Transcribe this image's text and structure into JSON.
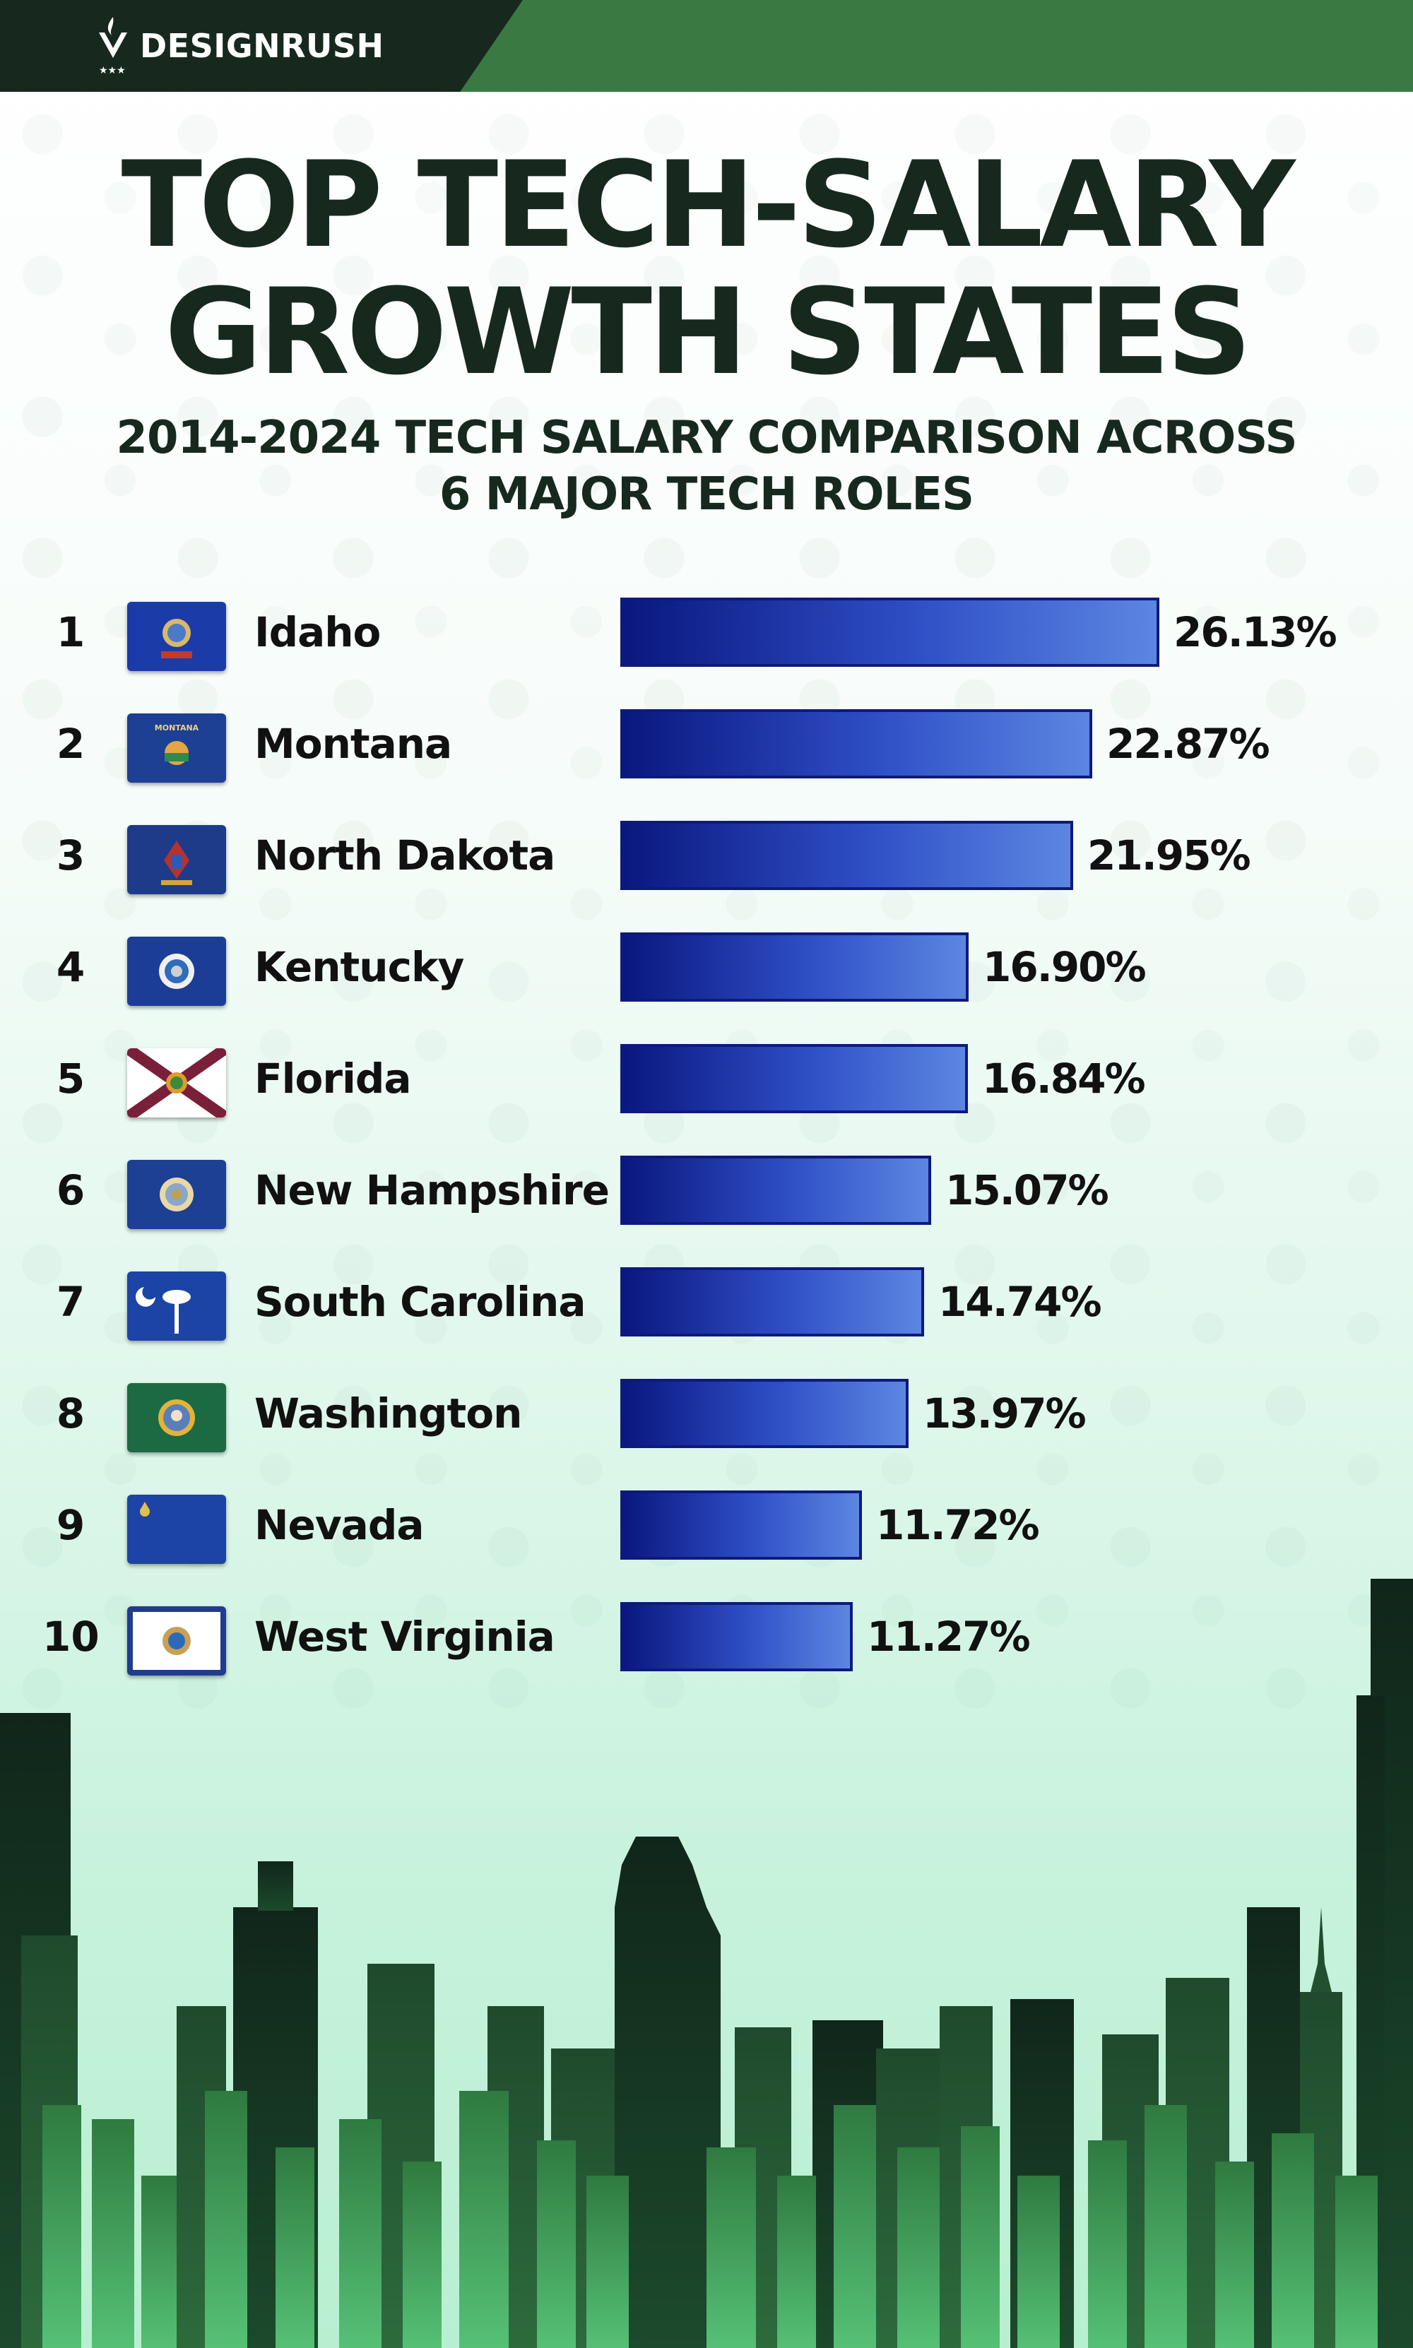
{
  "brand": {
    "name": "DESIGNRUSH",
    "icon": "designrush-logo-icon"
  },
  "title_lines": [
    "TOP TECH-SALARY",
    "GROWTH STATES"
  ],
  "subtitle_lines": [
    "2014-2024 TECH SALARY COMPARISON ACROSS",
    "6 MAJOR TECH ROLES"
  ],
  "colors": {
    "bar_dark": "#0a177f",
    "bar_light": "#5c86e2",
    "brand_dark": "#17291f",
    "brand_green": "#3a7a42"
  },
  "chart_data": {
    "type": "bar",
    "orientation": "horizontal",
    "title": "TOP TECH-SALARY GROWTH STATES",
    "subtitle": "2014-2024 TECH SALARY COMPARISON ACROSS 6 MAJOR TECH ROLES",
    "xlim": [
      0,
      30
    ],
    "grid": false,
    "rows": [
      {
        "rank": "1",
        "state": "Idaho",
        "value": 26.13,
        "label": "26.13%",
        "flag": "idaho-flag-icon"
      },
      {
        "rank": "2",
        "state": "Montana",
        "value": 22.87,
        "label": "22.87%",
        "flag": "montana-flag-icon"
      },
      {
        "rank": "3",
        "state": "North Dakota",
        "value": 21.95,
        "label": "21.95%",
        "flag": "north-dakota-flag-icon"
      },
      {
        "rank": "4",
        "state": "Kentucky",
        "value": 16.9,
        "label": "16.90%",
        "flag": "kentucky-flag-icon"
      },
      {
        "rank": "5",
        "state": "Florida",
        "value": 16.84,
        "label": "16.84%",
        "flag": "florida-flag-icon"
      },
      {
        "rank": "6",
        "state": "New Hampshire",
        "value": 15.07,
        "label": "15.07%",
        "flag": "new-hampshire-flag-icon"
      },
      {
        "rank": "7",
        "state": "South Carolina",
        "value": 14.74,
        "label": "14.74%",
        "flag": "south-carolina-flag-icon"
      },
      {
        "rank": "8",
        "state": "Washington",
        "value": 13.97,
        "label": "13.97%",
        "flag": "washington-flag-icon"
      },
      {
        "rank": "9",
        "state": "Nevada",
        "value": 11.72,
        "label": "11.72%",
        "flag": "nevada-flag-icon"
      },
      {
        "rank": "10",
        "state": "West Virginia",
        "value": 11.27,
        "label": "11.27%",
        "flag": "west-virginia-flag-icon"
      }
    ]
  }
}
